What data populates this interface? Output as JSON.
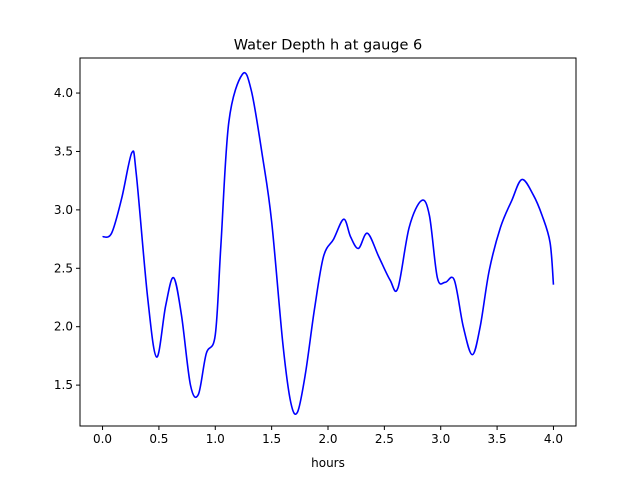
{
  "chart_data": {
    "type": "line",
    "title": "Water Depth h at gauge 6",
    "xlabel": "hours",
    "ylabel": "",
    "xlim": [
      -0.2,
      4.2
    ],
    "ylim": [
      1.15,
      4.3
    ],
    "xticks": [
      0.0,
      0.5,
      1.0,
      1.5,
      2.0,
      2.5,
      3.0,
      3.5,
      4.0
    ],
    "xtick_labels": [
      "0.0",
      "0.5",
      "1.0",
      "1.5",
      "2.0",
      "2.5",
      "3.0",
      "3.5",
      "4.0"
    ],
    "yticks": [
      1.5,
      2.0,
      2.5,
      3.0,
      3.5,
      4.0
    ],
    "ytick_labels": [
      "1.5",
      "2.0",
      "2.5",
      "3.0",
      "3.5",
      "4.0"
    ],
    "grid": false,
    "line_color": "#0000ff",
    "series": [
      {
        "x": [
          0.0,
          0.08,
          0.17,
          0.26,
          0.3,
          0.4,
          0.48,
          0.56,
          0.63,
          0.7,
          0.78,
          0.85,
          0.92,
          1.0,
          1.05,
          1.12,
          1.24,
          1.32,
          1.42,
          1.5,
          1.6,
          1.67,
          1.73,
          1.8,
          1.88,
          1.96,
          2.05,
          2.14,
          2.2,
          2.27,
          2.35,
          2.45,
          2.55,
          2.62,
          2.72,
          2.83,
          2.9,
          2.97,
          3.04,
          3.12,
          3.2,
          3.28,
          3.35,
          3.43,
          3.53,
          3.63,
          3.72,
          3.82,
          3.9,
          3.97,
          4.0
        ],
        "y": [
          2.77,
          2.8,
          3.1,
          3.49,
          3.3,
          2.25,
          1.74,
          2.18,
          2.42,
          2.1,
          1.5,
          1.42,
          1.77,
          1.93,
          2.7,
          3.75,
          4.16,
          4.02,
          3.45,
          2.9,
          1.85,
          1.35,
          1.27,
          1.6,
          2.15,
          2.6,
          2.75,
          2.92,
          2.77,
          2.67,
          2.8,
          2.6,
          2.4,
          2.33,
          2.85,
          3.08,
          2.95,
          2.42,
          2.38,
          2.4,
          2.0,
          1.76,
          2.0,
          2.48,
          2.85,
          3.08,
          3.26,
          3.13,
          2.95,
          2.72,
          2.36
        ]
      }
    ]
  }
}
